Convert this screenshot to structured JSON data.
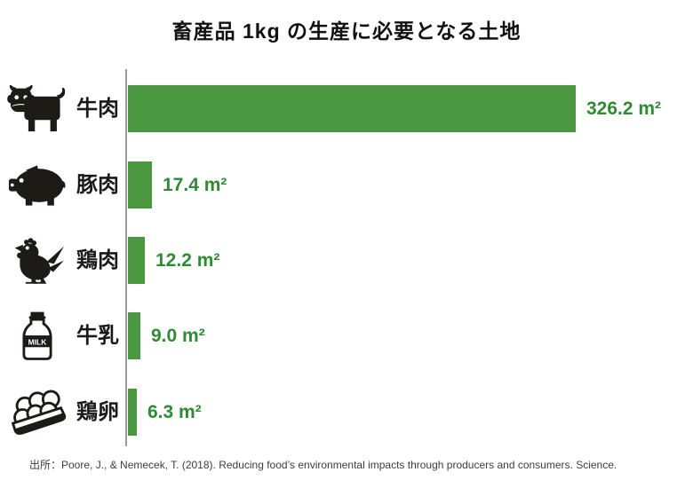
{
  "title": "畜産品 1kg の生産に必要となる土地",
  "source": "出所：Poore, J., & Nemecek, T. (2018). Reducing food’s environmental impacts through producers and consumers. Science.",
  "unit": "m²",
  "colors": {
    "bar": "#4a9641",
    "value_text": "#2f8b33",
    "axis": "#9a9a9a",
    "title_text": "#111111",
    "label_text": "#1a1a1a",
    "source_text": "#3d3d3d"
  },
  "chart_data": {
    "type": "bar",
    "orientation": "horizontal",
    "title": "畜産品 1kg の生産に必要となる土地",
    "categories": [
      "牛肉",
      "豚肉",
      "鶏肉",
      "牛乳",
      "鶏卵"
    ],
    "values": [
      326.2,
      17.4,
      12.2,
      9.0,
      6.3
    ],
    "value_labels": [
      "326.2 m²",
      "17.4 m²",
      "12.2 m²",
      "9.0 m²",
      "6.3 m²"
    ],
    "icons": [
      "cow-icon",
      "pig-icon",
      "chicken-icon",
      "milk-bottle-icon",
      "egg-carton-icon"
    ],
    "unit": "m²",
    "xlabel": "",
    "ylabel": "",
    "xlim": [
      0,
      340
    ],
    "grid": false,
    "legend": false,
    "bar_color": "#4a9641"
  }
}
